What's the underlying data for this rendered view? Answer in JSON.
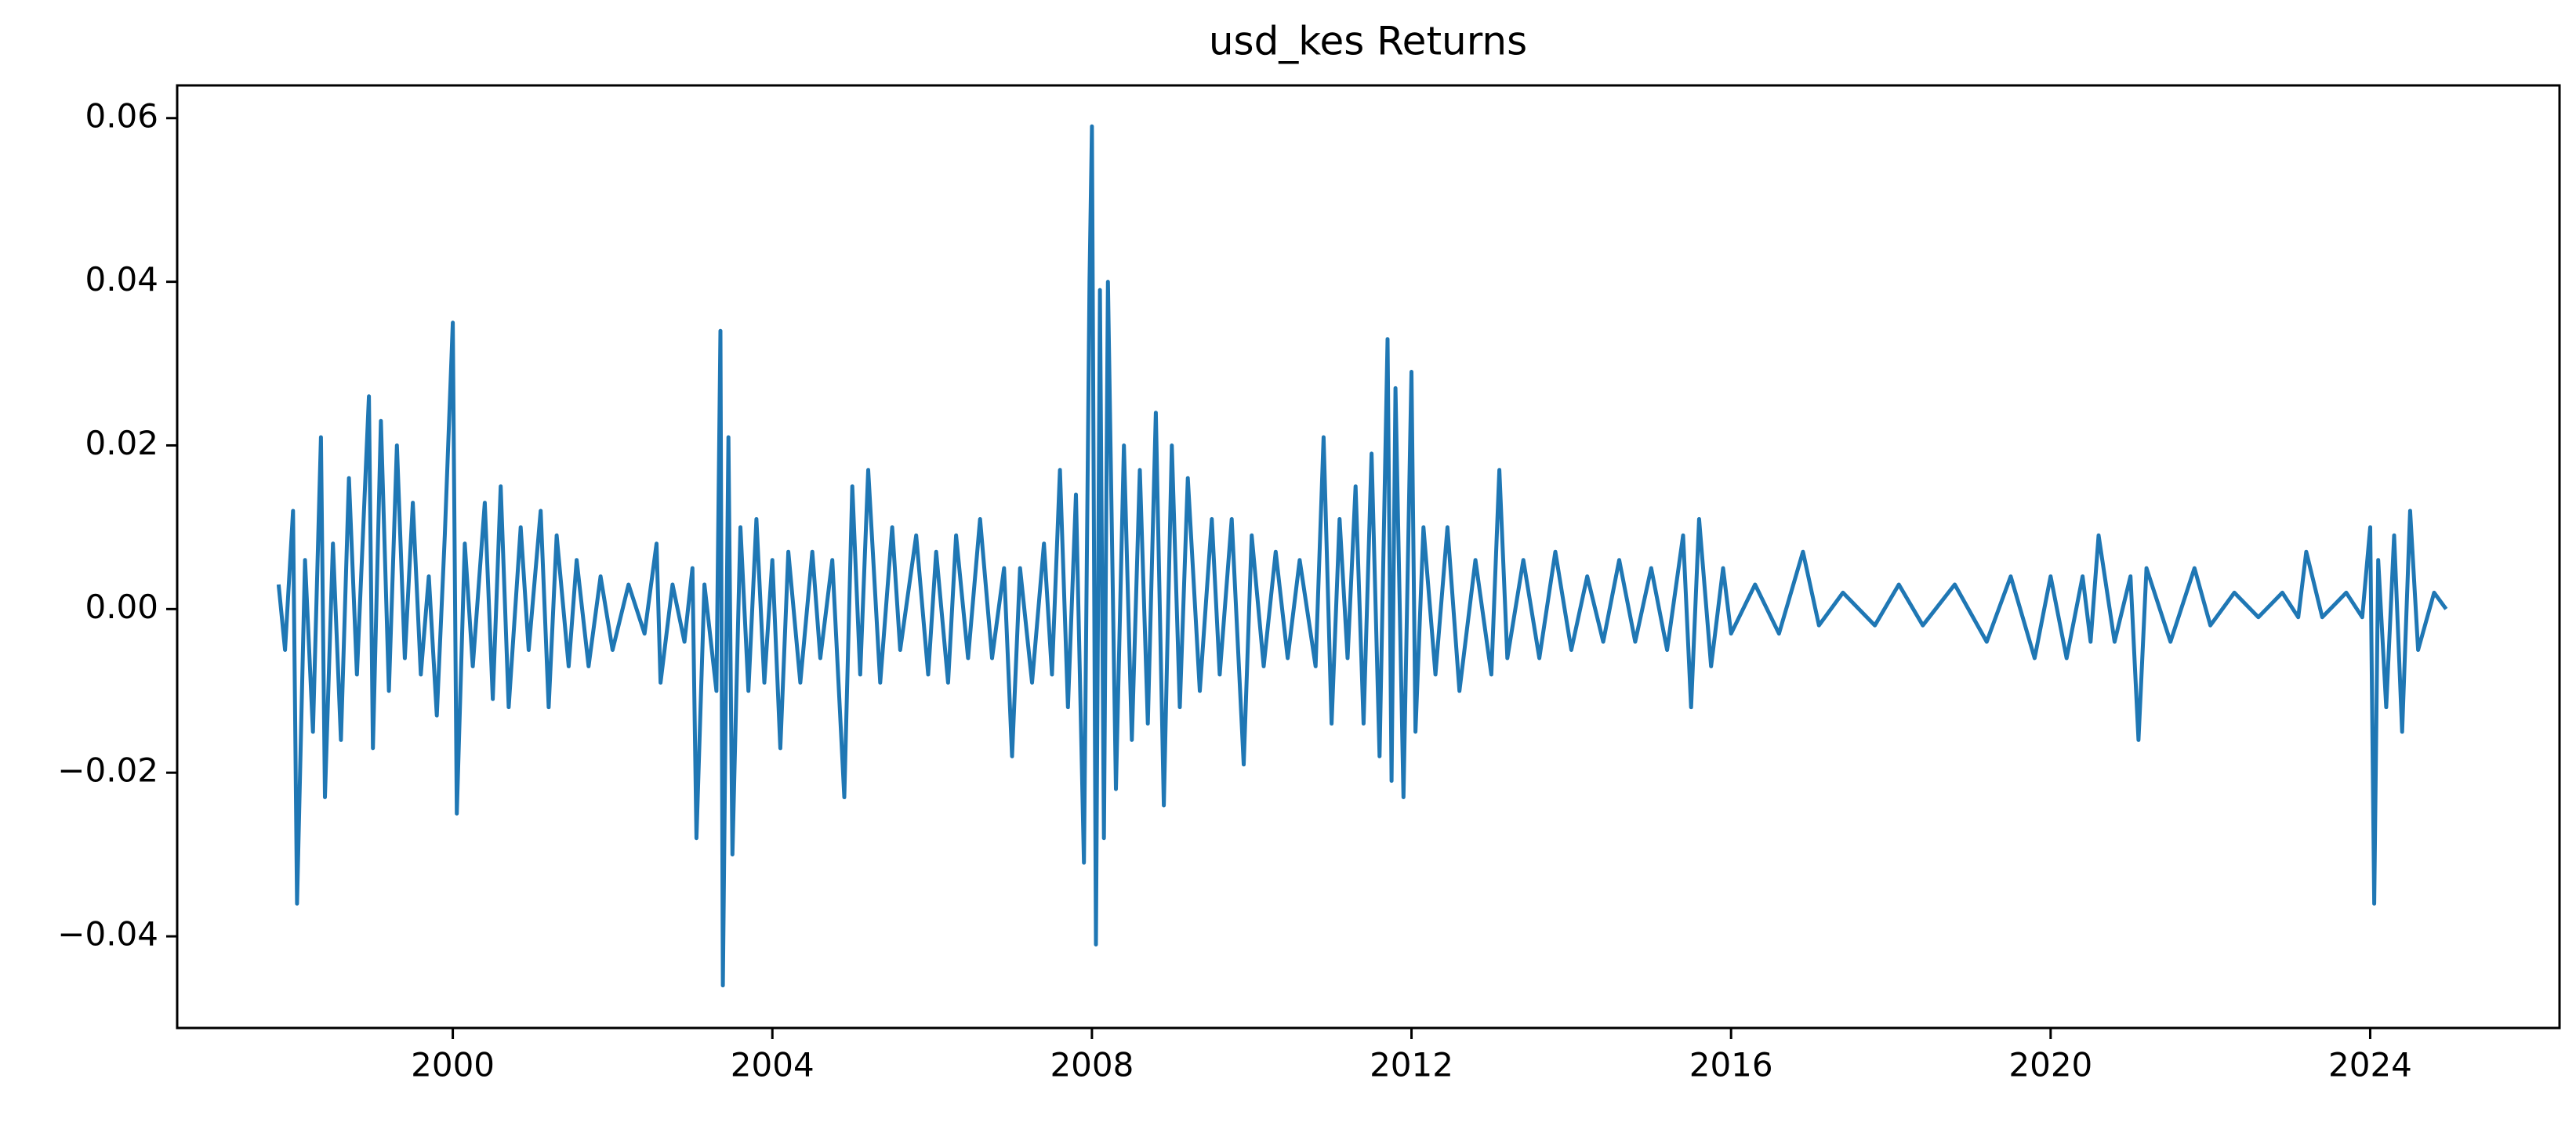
{
  "chart_data": {
    "type": "line",
    "title": "usd_kes Returns",
    "x": [
      1997.82,
      1997.9,
      1998.0,
      1998.05,
      1998.15,
      1998.25,
      1998.35,
      1998.4,
      1998.5,
      1998.6,
      1998.7,
      1998.8,
      1998.95,
      1999.0,
      1999.1,
      1999.2,
      1999.3,
      1999.4,
      1999.5,
      1999.6,
      1999.7,
      1999.8,
      1999.9,
      2000.0,
      2000.05,
      2000.15,
      2000.25,
      2000.4,
      2000.5,
      2000.6,
      2000.7,
      2000.85,
      2000.95,
      2001.1,
      2001.2,
      2001.3,
      2001.45,
      2001.55,
      2001.7,
      2001.85,
      2002.0,
      2002.2,
      2002.4,
      2002.55,
      2002.6,
      2002.75,
      2002.9,
      2003.0,
      2003.05,
      2003.15,
      2003.3,
      2003.35,
      2003.38,
      2003.45,
      2003.5,
      2003.6,
      2003.7,
      2003.8,
      2003.9,
      2004.0,
      2004.1,
      2004.2,
      2004.35,
      2004.5,
      2004.6,
      2004.75,
      2004.9,
      2005.0,
      2005.1,
      2005.2,
      2005.35,
      2005.5,
      2005.6,
      2005.8,
      2005.95,
      2006.05,
      2006.2,
      2006.3,
      2006.45,
      2006.6,
      2006.75,
      2006.9,
      2007.0,
      2007.1,
      2007.25,
      2007.4,
      2007.5,
      2007.6,
      2007.7,
      2007.8,
      2007.9,
      2007.97,
      2008.0,
      2008.05,
      2008.1,
      2008.15,
      2008.2,
      2008.3,
      2008.4,
      2008.5,
      2008.6,
      2008.7,
      2008.8,
      2008.9,
      2009.0,
      2009.1,
      2009.2,
      2009.35,
      2009.5,
      2009.6,
      2009.75,
      2009.9,
      2010.0,
      2010.15,
      2010.3,
      2010.45,
      2010.6,
      2010.8,
      2010.9,
      2011.0,
      2011.1,
      2011.2,
      2011.3,
      2011.4,
      2011.5,
      2011.6,
      2011.7,
      2011.75,
      2011.8,
      2011.9,
      2012.0,
      2012.05,
      2012.15,
      2012.3,
      2012.45,
      2012.6,
      2012.8,
      2013.0,
      2013.1,
      2013.2,
      2013.4,
      2013.6,
      2013.8,
      2014.0,
      2014.2,
      2014.4,
      2014.6,
      2014.8,
      2015.0,
      2015.2,
      2015.4,
      2015.5,
      2015.6,
      2015.75,
      2015.9,
      2016.0,
      2016.3,
      2016.6,
      2016.9,
      2017.1,
      2017.4,
      2017.8,
      2018.1,
      2018.4,
      2018.8,
      2019.2,
      2019.5,
      2019.8,
      2020.0,
      2020.2,
      2020.4,
      2020.5,
      2020.6,
      2020.8,
      2021.0,
      2021.1,
      2021.2,
      2021.5,
      2021.8,
      2022.0,
      2022.3,
      2022.6,
      2022.9,
      2023.1,
      2023.2,
      2023.4,
      2023.7,
      2023.9,
      2024.0,
      2024.05,
      2024.1,
      2024.2,
      2024.3,
      2024.4,
      2024.5,
      2024.6,
      2024.8,
      2024.95
    ],
    "series": [
      {
        "color": "#1f77b4",
        "values": [
          0.003,
          -0.005,
          0.012,
          -0.036,
          0.006,
          -0.015,
          0.021,
          -0.023,
          0.008,
          -0.016,
          0.016,
          -0.008,
          0.026,
          -0.017,
          0.023,
          -0.01,
          0.02,
          -0.006,
          0.013,
          -0.008,
          0.004,
          -0.013,
          0.009,
          0.035,
          -0.025,
          0.008,
          -0.007,
          0.013,
          -0.011,
          0.015,
          -0.012,
          0.01,
          -0.005,
          0.012,
          -0.012,
          0.009,
          -0.007,
          0.006,
          -0.007,
          0.004,
          -0.005,
          0.003,
          -0.003,
          0.008,
          -0.009,
          0.003,
          -0.004,
          0.005,
          -0.028,
          0.003,
          -0.01,
          0.034,
          -0.046,
          0.021,
          -0.03,
          0.01,
          -0.01,
          0.011,
          -0.009,
          0.006,
          -0.017,
          0.007,
          -0.009,
          0.007,
          -0.006,
          0.006,
          -0.023,
          0.015,
          -0.008,
          0.017,
          -0.009,
          0.01,
          -0.005,
          0.009,
          -0.008,
          0.007,
          -0.009,
          0.009,
          -0.006,
          0.011,
          -0.006,
          0.005,
          -0.018,
          0.005,
          -0.009,
          0.008,
          -0.008,
          0.017,
          -0.012,
          0.014,
          -0.031,
          0.04,
          0.059,
          -0.041,
          0.039,
          -0.028,
          0.04,
          -0.022,
          0.02,
          -0.016,
          0.017,
          -0.014,
          0.024,
          -0.024,
          0.02,
          -0.012,
          0.016,
          -0.01,
          0.011,
          -0.008,
          0.011,
          -0.019,
          0.009,
          -0.007,
          0.007,
          -0.006,
          0.006,
          -0.007,
          0.021,
          -0.014,
          0.011,
          -0.006,
          0.015,
          -0.014,
          0.019,
          -0.018,
          0.033,
          -0.021,
          0.027,
          -0.023,
          0.029,
          -0.015,
          0.01,
          -0.008,
          0.01,
          -0.01,
          0.006,
          -0.008,
          0.017,
          -0.006,
          0.006,
          -0.006,
          0.007,
          -0.005,
          0.004,
          -0.004,
          0.006,
          -0.004,
          0.005,
          -0.005,
          0.009,
          -0.012,
          0.011,
          -0.007,
          0.005,
          -0.003,
          0.003,
          -0.003,
          0.007,
          -0.002,
          0.002,
          -0.002,
          0.003,
          -0.002,
          0.003,
          -0.004,
          0.004,
          -0.006,
          0.004,
          -0.006,
          0.004,
          -0.004,
          0.009,
          -0.004,
          0.004,
          -0.016,
          0.005,
          -0.004,
          0.005,
          -0.002,
          0.002,
          -0.001,
          0.002,
          -0.001,
          0.007,
          -0.001,
          0.002,
          -0.001,
          0.01,
          -0.036,
          0.006,
          -0.012,
          0.009,
          -0.015,
          0.012,
          -0.005,
          0.002,
          0
        ]
      }
    ],
    "xlim": [
      1996.55,
      2026.37
    ],
    "xticks": [
      2000,
      2004,
      2008,
      2012,
      2016,
      2020,
      2024
    ],
    "ylim": [
      -0.0512,
      0.064
    ],
    "yticks": [
      {
        "value": -0.04,
        "label": "−0.04"
      },
      {
        "value": -0.02,
        "label": "−0.02"
      },
      {
        "value": 0,
        "label": "0.00"
      },
      0.02,
      0.04,
      0.06
    ]
  }
}
